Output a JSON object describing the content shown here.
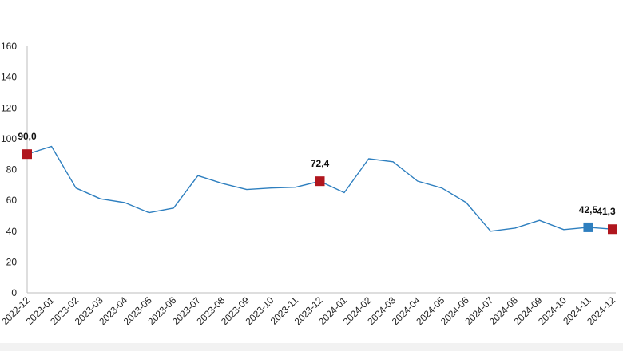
{
  "chart_data": {
    "type": "line",
    "title": "",
    "xlabel": "",
    "ylabel": "",
    "ylim": [
      0,
      160
    ],
    "yticks": [
      0,
      20,
      40,
      60,
      80,
      100,
      120,
      140,
      160
    ],
    "grid": false,
    "legend": "none",
    "line_color": "#2e7fbf",
    "categories": [
      "2022-12",
      "2023-01",
      "2023-02",
      "2023-03",
      "2023-04",
      "2023-05",
      "2023-06",
      "2023-07",
      "2023-08",
      "2023-09",
      "2023-10",
      "2023-11",
      "2023-12",
      "2024-01",
      "2024-02",
      "2024-03",
      "2024-04",
      "2024-05",
      "2024-06",
      "2024-07",
      "2024-08",
      "2024-09",
      "2024-10",
      "2024-11",
      "2024-12"
    ],
    "series": [
      {
        "values": [
          90.0,
          95,
          68,
          61,
          58.5,
          52,
          55,
          76,
          71,
          67,
          68,
          68.5,
          72.4,
          65,
          87,
          85,
          72.5,
          68,
          58.5,
          40,
          42,
          47,
          41,
          42.5,
          41.3
        ]
      }
    ],
    "highlighted_points": [
      {
        "category": "2022-12",
        "label": "90,0",
        "color": "#b0161e"
      },
      {
        "category": "2023-12",
        "label": "72,4",
        "color": "#b0161e"
      },
      {
        "category": "2024-11",
        "label": "42,5",
        "color": "#2e7fbf"
      },
      {
        "category": "2024-12",
        "label": "41,3",
        "color": "#b0161e"
      }
    ]
  }
}
